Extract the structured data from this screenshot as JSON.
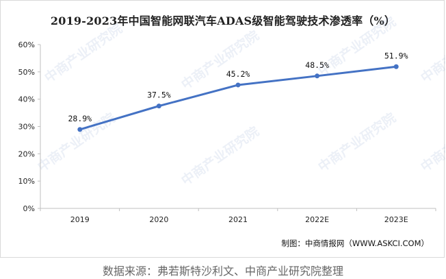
{
  "chart_data": {
    "type": "line",
    "title": "2019-2023年中国智能网联汽车ADAS级智能驾驶技术渗透率（%）",
    "categories": [
      "2019",
      "2020",
      "2021",
      "2022E",
      "2023E"
    ],
    "series": [
      {
        "values": [
          28.9,
          37.5,
          45.2,
          48.5,
          51.9
        ]
      }
    ],
    "data_labels": [
      "28.9%",
      "37.5%",
      "45.2%",
      "48.5%",
      "51.9%"
    ],
    "y_ticks": [
      "0%",
      "10%",
      "20%",
      "30%",
      "40%",
      "50%",
      "60%"
    ],
    "ylim": [
      0,
      60
    ],
    "xlabel": "",
    "ylabel": "",
    "grid": false,
    "line_color": "#4472c4"
  },
  "credit": "制图：中商情报网（WWW.ASKCI.COM）",
  "watermark": "中商产业研究院",
  "source": "数据来源：弗若斯特沙利文、中商产业研究院整理"
}
